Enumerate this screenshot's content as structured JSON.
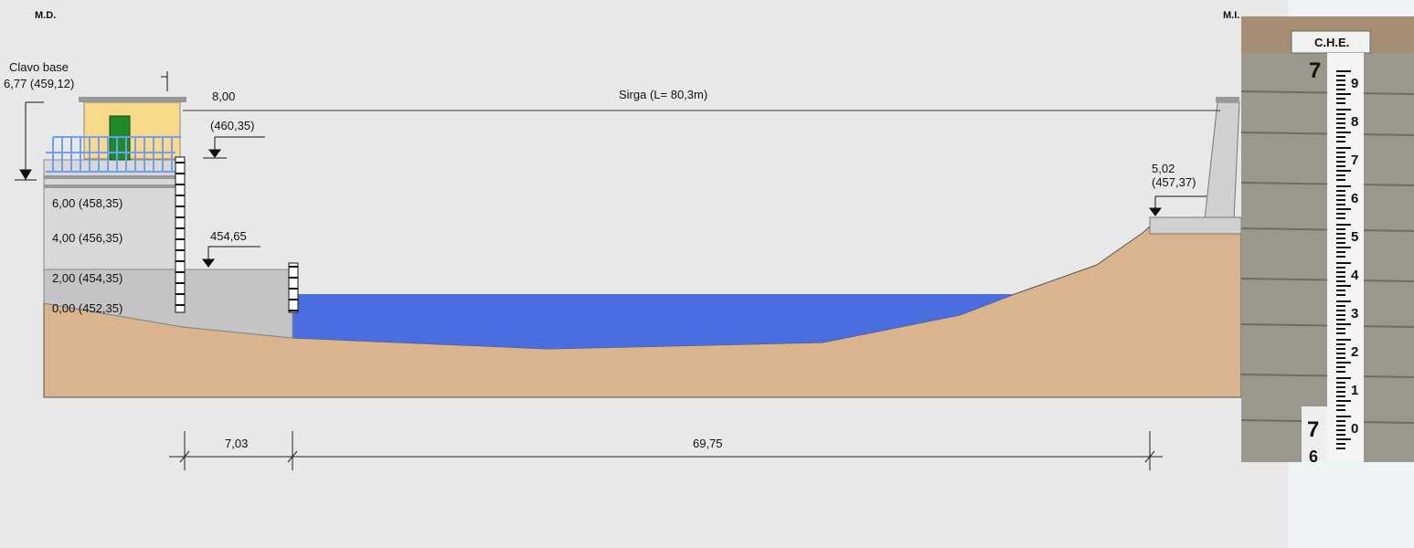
{
  "header": {
    "left_bank": "M.D.",
    "right_bank": "M.I."
  },
  "section": {
    "base_nail_label": "Clavo base",
    "base_nail_value": "6,77 (459,12)",
    "left_top": "8,00",
    "left_top_elev": "(460,35)",
    "cable": "Sirga (L= 80,3m)",
    "gauge_levels": [
      "6,00 (458,35)",
      "4,00 (456,35)",
      "2,00 (454,35)",
      "0,00 (452,35)"
    ],
    "weir_elev": "454,65",
    "right_level": "5,02",
    "right_elev": "(457,37)",
    "dimensions": [
      "7,03",
      "69,75"
    ]
  },
  "photo": {
    "sign": "C.H.E.",
    "scale": [
      "9",
      "8",
      "7",
      "6",
      "5",
      "4",
      "3",
      "2",
      "1",
      "0"
    ],
    "markers": [
      "7",
      "7",
      "6"
    ]
  }
}
